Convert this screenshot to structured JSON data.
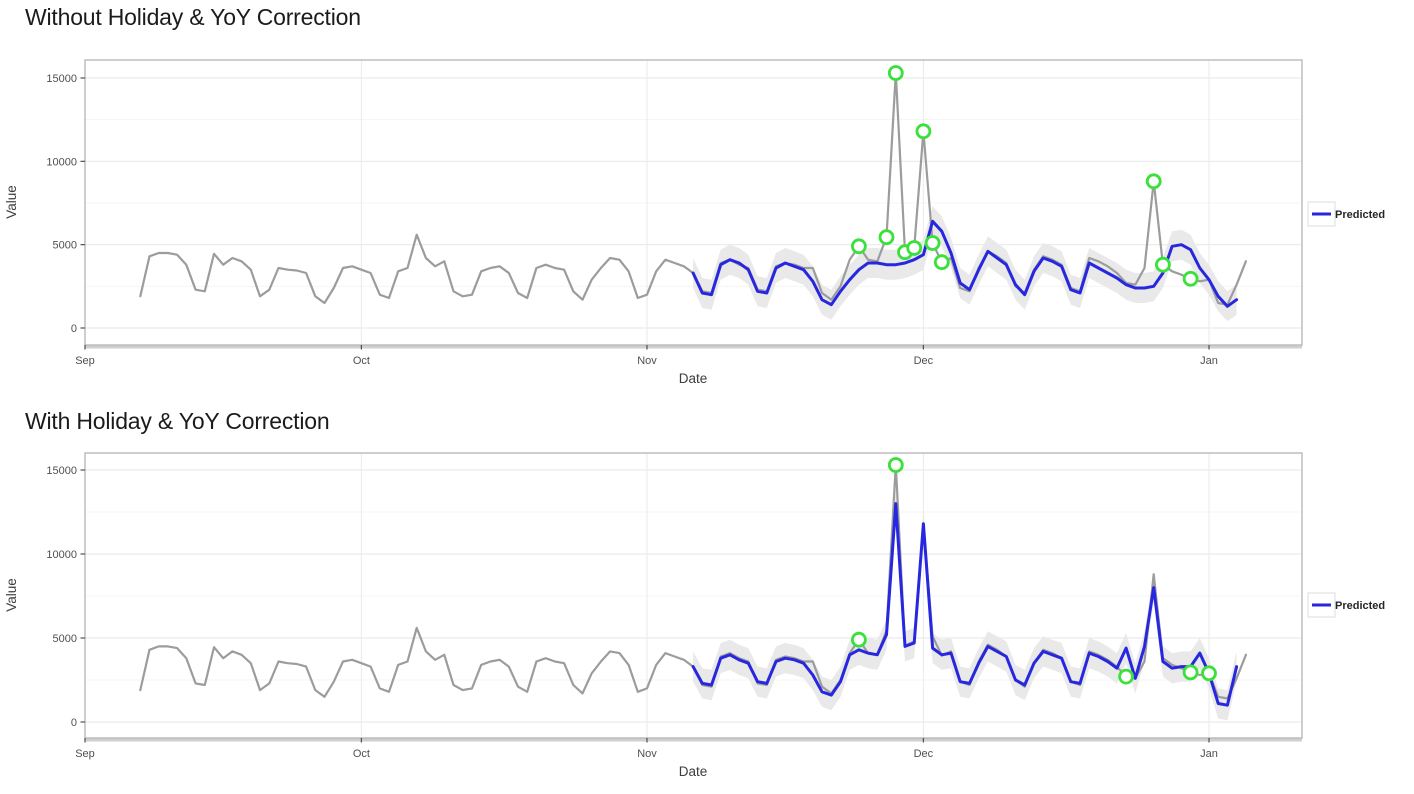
{
  "page": {
    "background": "#ffffff"
  },
  "colors": {
    "actual_line": "#9c9c9c",
    "predicted_line": "#2727df",
    "anomaly_ring": "#3ae13a",
    "anomaly_fill": "#ffffff",
    "confidence_band": "#e9e9e9",
    "grid_major": "#eaeaea",
    "grid_minor": "#f5f5f5",
    "panel_border": "#b9b9b9",
    "axis_line": "#cfcfcf",
    "tick_mark": "#4f4f4f",
    "legend_box_border": "#dcdcdc",
    "legend_box_fill": "#ffffff"
  },
  "charts": [
    {
      "title": "Without Holiday & YoY Correction",
      "ylabel": "Value",
      "xlabel": "Date",
      "legend_label": "Predicted",
      "ytick_labels": [
        "0",
        "5000",
        "10000",
        "15000"
      ],
      "xtick_labels": [
        "Sep",
        "Oct",
        "Nov",
        "Dec",
        "Jan"
      ]
    },
    {
      "title": "With Holiday & YoY Correction",
      "ylabel": "Value",
      "xlabel": "Date",
      "legend_label": "Predicted",
      "ytick_labels": [
        "0",
        "5000",
        "10000",
        "15000"
      ],
      "xtick_labels": [
        "Sep",
        "Oct",
        "Nov",
        "Dec",
        "Jan"
      ]
    }
  ],
  "chart_data": [
    {
      "type": "line",
      "title": "Without Holiday & YoY Correction",
      "xlabel": "Date",
      "ylabel": "Value",
      "x_unit": "days_since_Sep_1",
      "xticks": {
        "days": [
          0,
          30,
          61,
          91,
          122
        ],
        "labels": [
          "Sep",
          "Oct",
          "Nov",
          "Dec",
          "Jan"
        ]
      },
      "yticks": [
        0,
        5000,
        10000,
        15000
      ],
      "yticks_minor": [
        2500,
        7500,
        12500
      ],
      "ylim": [
        -1000,
        16100
      ],
      "xlim_days": [
        0,
        132
      ],
      "grid": true,
      "legend": {
        "entries": [
          "Predicted"
        ],
        "position": "right"
      },
      "series": [
        {
          "name": "actual",
          "role": "observed",
          "x_start_day": 6,
          "step_days": 1,
          "values": [
            1900,
            4300,
            4500,
            4500,
            4400,
            3800,
            2300,
            2200,
            4450,
            3800,
            4200,
            4000,
            3500,
            1900,
            2300,
            3600,
            3500,
            3450,
            3300,
            1900,
            1500,
            2400,
            3600,
            3700,
            3500,
            3300,
            2000,
            1800,
            3400,
            3600,
            5600,
            4200,
            3700,
            4000,
            2200,
            1900,
            2000,
            3400,
            3600,
            3700,
            3300,
            2100,
            1800,
            3600,
            3800,
            3600,
            3500,
            2200,
            1700,
            2900,
            3600,
            4200,
            4100,
            3400,
            1800,
            2000,
            3400,
            4100,
            3900,
            3700,
            3300,
            2200,
            2100,
            3900,
            4100,
            3800,
            3600,
            2300,
            2200,
            3700,
            3900,
            3800,
            3600,
            3600,
            2100,
            1700,
            2500,
            4100,
            4900,
            4100,
            4000,
            5450,
            15300,
            4550,
            4800,
            11800,
            5100,
            3950,
            4200,
            2400,
            2200,
            3600,
            4600,
            4300,
            3900,
            2500,
            2100,
            3500,
            4300,
            4100,
            3800,
            2400,
            2200,
            4200,
            4000,
            3700,
            3300,
            2700,
            2600,
            3600,
            8800,
            3800,
            3400,
            3200,
            2950,
            2800,
            2900,
            1500,
            1400,
            2600,
            4000
          ]
        },
        {
          "name": "predicted",
          "role": "forecast",
          "x_start_day": 66,
          "step_days": 1,
          "ci_halfwidth": 900,
          "values": [
            3300,
            2100,
            2000,
            3800,
            4100,
            3900,
            3500,
            2200,
            2100,
            3600,
            3900,
            3700,
            3500,
            2800,
            1700,
            1400,
            2200,
            2900,
            3500,
            3900,
            3900,
            3800,
            3800,
            3900,
            4100,
            4400,
            6400,
            5800,
            4500,
            2700,
            2300,
            3500,
            4600,
            4200,
            3800,
            2600,
            2000,
            3400,
            4200,
            4000,
            3700,
            2300,
            2100,
            3900,
            3600,
            3300,
            3000,
            2600,
            2400,
            2400,
            2500,
            3300,
            4900,
            5000,
            4700,
            3600,
            2900,
            1900,
            1300,
            1700
          ]
        }
      ],
      "anomalies": {
        "marker": "open-circle",
        "points": [
          {
            "day": 84,
            "value": 4900
          },
          {
            "day": 87,
            "value": 5450
          },
          {
            "day": 88,
            "value": 15300
          },
          {
            "day": 89,
            "value": 4550
          },
          {
            "day": 90,
            "value": 4800
          },
          {
            "day": 91,
            "value": 11800
          },
          {
            "day": 92,
            "value": 5100
          },
          {
            "day": 93,
            "value": 3950
          },
          {
            "day": 116,
            "value": 8800
          },
          {
            "day": 117,
            "value": 3800
          },
          {
            "day": 120,
            "value": 2950
          }
        ]
      }
    },
    {
      "type": "line",
      "title": "With Holiday & YoY Correction",
      "xlabel": "Date",
      "ylabel": "Value",
      "x_unit": "days_since_Sep_1",
      "xticks": {
        "days": [
          0,
          30,
          61,
          91,
          122
        ],
        "labels": [
          "Sep",
          "Oct",
          "Nov",
          "Dec",
          "Jan"
        ]
      },
      "yticks": [
        0,
        5000,
        10000,
        15000
      ],
      "yticks_minor": [
        2500,
        7500,
        12500
      ],
      "ylim": [
        -1000,
        16100
      ],
      "xlim_days": [
        0,
        132
      ],
      "grid": true,
      "legend": {
        "entries": [
          "Predicted"
        ],
        "position": "right"
      },
      "series": [
        {
          "name": "actual",
          "role": "observed",
          "x_start_day": 6,
          "step_days": 1,
          "values": [
            1900,
            4300,
            4500,
            4500,
            4400,
            3800,
            2300,
            2200,
            4450,
            3800,
            4200,
            4000,
            3500,
            1900,
            2300,
            3600,
            3500,
            3450,
            3300,
            1900,
            1500,
            2400,
            3600,
            3700,
            3500,
            3300,
            2000,
            1800,
            3400,
            3600,
            5600,
            4200,
            3700,
            4000,
            2200,
            1900,
            2000,
            3400,
            3600,
            3700,
            3300,
            2100,
            1800,
            3600,
            3800,
            3600,
            3500,
            2200,
            1700,
            2900,
            3600,
            4200,
            4100,
            3400,
            1800,
            2000,
            3400,
            4100,
            3900,
            3700,
            3300,
            2200,
            2100,
            3900,
            4100,
            3800,
            3600,
            2300,
            2200,
            3700,
            3900,
            3800,
            3600,
            3600,
            2100,
            1700,
            2500,
            4100,
            4900,
            4100,
            4000,
            5450,
            15300,
            4550,
            4800,
            11800,
            5100,
            3950,
            4200,
            2400,
            2200,
            3600,
            4600,
            4300,
            3900,
            2500,
            2100,
            3500,
            4300,
            4100,
            3800,
            2400,
            2200,
            4200,
            4000,
            3700,
            3300,
            2700,
            2600,
            3600,
            8800,
            3800,
            3400,
            3200,
            2950,
            2800,
            2900,
            1500,
            1400,
            2600,
            4000
          ]
        },
        {
          "name": "predicted",
          "role": "forecast",
          "x_start_day": 66,
          "step_days": 1,
          "ci_halfwidth": 900,
          "values": [
            3300,
            2300,
            2200,
            3800,
            4000,
            3700,
            3500,
            2400,
            2300,
            3600,
            3800,
            3700,
            3500,
            2800,
            1800,
            1600,
            2400,
            4000,
            4300,
            4100,
            4000,
            5200,
            13000,
            4500,
            4700,
            11800,
            4400,
            4000,
            4100,
            2400,
            2300,
            3500,
            4500,
            4200,
            3900,
            2500,
            2200,
            3500,
            4200,
            4000,
            3800,
            2400,
            2300,
            4100,
            3900,
            3600,
            3200,
            4400,
            2600,
            4500,
            8000,
            3600,
            3200,
            3300,
            3300,
            4100,
            2900,
            1100,
            1000,
            3300
          ]
        }
      ],
      "anomalies": {
        "marker": "open-circle",
        "points": [
          {
            "day": 84,
            "value": 4900
          },
          {
            "day": 88,
            "value": 15300
          },
          {
            "day": 113,
            "value": 2700
          },
          {
            "day": 120,
            "value": 2950
          },
          {
            "day": 122,
            "value": 2900
          }
        ]
      }
    }
  ]
}
